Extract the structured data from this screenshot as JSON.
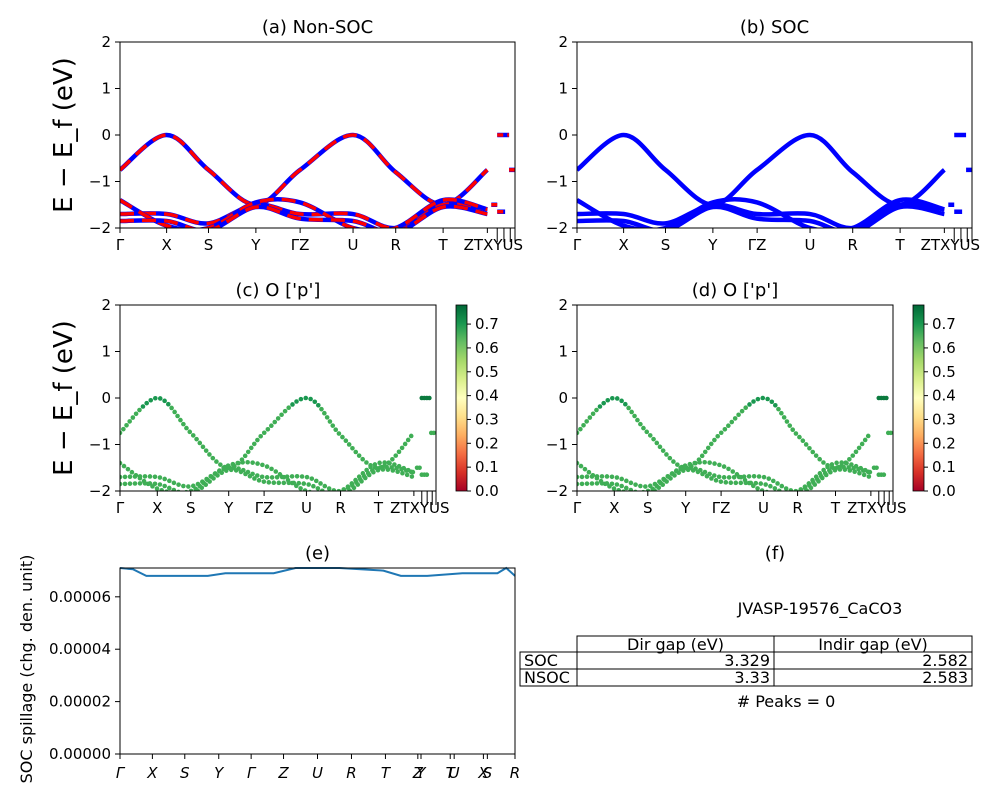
{
  "figure": {
    "colors": {
      "band_blue": "#0000ff",
      "band_red": "#ff0000",
      "spillage_line": "#1f77b4"
    },
    "y_axis_label": "E − E_f (eV)"
  },
  "chart_data": [
    {
      "id": "a",
      "type": "line",
      "title": "(a) Non-SOC",
      "xlabel": "",
      "ylabel": "E − E_f (eV)",
      "ylim": [
        -2,
        2
      ],
      "yticks": [
        "2",
        "1",
        "0",
        "−1",
        "−2"
      ],
      "kpath": [
        "Γ",
        "X",
        "S",
        "Y",
        "ΓZ",
        "U",
        "R",
        "T",
        "ZTXYUS"
      ],
      "series_colors": [
        "#0000ff",
        "#ff0000"
      ],
      "bands_at_kpoints": {
        "k": [
          0,
          1,
          2,
          3,
          4,
          5,
          6,
          7,
          8
        ],
        "top_valence": [
          -0.75,
          0.0,
          -0.75,
          -1.5,
          -0.75,
          0.0,
          -0.8,
          -1.5,
          -0.75
        ],
        "lower_band_1": [
          -1.7,
          -1.7,
          -1.9,
          -1.5,
          -1.7,
          -1.7,
          -2.0,
          -1.5,
          -1.6
        ],
        "lower_band_2": [
          -1.4,
          -1.95,
          -2.0,
          -1.45,
          -1.45,
          -2.0,
          -2.0,
          -1.4,
          -1.6
        ]
      }
    },
    {
      "id": "b",
      "type": "line",
      "title": "(b) SOC",
      "xlabel": "",
      "ylabel": "",
      "ylim": [
        -2,
        2
      ],
      "yticks": [
        "2",
        "1",
        "0",
        "−1",
        "−2"
      ],
      "kpath": [
        "Γ",
        "X",
        "S",
        "Y",
        "ΓZ",
        "U",
        "R",
        "T",
        "ZTXYUS"
      ],
      "series_colors": [
        "#0000ff"
      ],
      "bands_at_kpoints": {
        "k": [
          0,
          1,
          2,
          3,
          4,
          5,
          6,
          7,
          8
        ],
        "top_valence": [
          -0.75,
          0.0,
          -0.75,
          -1.5,
          -0.75,
          0.0,
          -0.8,
          -1.5,
          -0.75
        ],
        "lower_band_1": [
          -1.7,
          -1.7,
          -1.9,
          -1.5,
          -1.7,
          -1.7,
          -2.0,
          -1.5,
          -1.6
        ],
        "lower_band_2": [
          -1.4,
          -1.95,
          -2.0,
          -1.45,
          -1.45,
          -2.0,
          -2.0,
          -1.4,
          -1.6
        ]
      }
    },
    {
      "id": "c",
      "type": "scatter",
      "title": "(c)  O ['p']",
      "xlabel": "",
      "ylabel": "E − E_f (eV)",
      "ylim": [
        -2,
        2
      ],
      "yticks": [
        "2",
        "1",
        "0",
        "−1",
        "−2"
      ],
      "kpath": [
        "Γ",
        "X",
        "S",
        "Y",
        "ΓZ",
        "U",
        "R",
        "T",
        "ZTXYUS"
      ],
      "colorbar": {
        "range": [
          0.0,
          0.78
        ],
        "ticks": [
          "0.7",
          "0.6",
          "0.5",
          "0.4",
          "0.3",
          "0.2",
          "0.1",
          "0.0"
        ],
        "colormap": "RdYlGn"
      },
      "projection_weight_approx": 0.65
    },
    {
      "id": "d",
      "type": "scatter",
      "title": "(d) O ['p']",
      "xlabel": "",
      "ylabel": "",
      "ylim": [
        -2,
        2
      ],
      "yticks": [
        "2",
        "1",
        "0",
        "−1",
        "−2"
      ],
      "kpath": [
        "Γ",
        "X",
        "S",
        "Y",
        "ΓZ",
        "U",
        "R",
        "T",
        "ZTXYUS"
      ],
      "colorbar": {
        "range": [
          0.0,
          0.78
        ],
        "ticks": [
          "0.7",
          "0.6",
          "0.5",
          "0.4",
          "0.3",
          "0.2",
          "0.1",
          "0.0"
        ],
        "colormap": "RdYlGn"
      },
      "projection_weight_approx": 0.65
    },
    {
      "id": "e",
      "type": "line",
      "title": "(e)",
      "xlabel": "",
      "ylabel": "SOC spillage (chg. den. unit)",
      "ylim": [
        0,
        7.1e-05
      ],
      "yticks": [
        "0.00006",
        "0.00004",
        "0.00002",
        "0.00000"
      ],
      "kpath": [
        "Γ",
        "X",
        "S",
        "Y",
        "Γ",
        "Z",
        "U",
        "R",
        "T",
        "Z",
        "Y",
        "T",
        "U",
        "X",
        "S",
        "R"
      ],
      "x": [
        0,
        0.3,
        0.6,
        1.2,
        2.0,
        2.4,
        3.5,
        4.0,
        5.0,
        6.0,
        6.4,
        7.0,
        7.8,
        8.6,
        8.8,
        9.0
      ],
      "values": [
        7.1e-05,
        7.05e-05,
        6.8e-05,
        6.8e-05,
        6.8e-05,
        6.9e-05,
        6.9e-05,
        7.1e-05,
        7.1e-05,
        7e-05,
        6.8e-05,
        6.8e-05,
        6.9e-05,
        6.9e-05,
        7.1e-05,
        6.8e-05
      ]
    }
  ],
  "panel_f": {
    "title": "(f)",
    "material": "JVASP-19576_CaCO3",
    "headers": [
      "Dir gap (eV)",
      "Indir gap (eV)"
    ],
    "rows": [
      {
        "label": "SOC",
        "dir": "3.329",
        "indir": "2.582"
      },
      {
        "label": "NSOC",
        "dir": "3.33",
        "indir": "2.583"
      }
    ],
    "peaks": "# Peaks = 0"
  }
}
